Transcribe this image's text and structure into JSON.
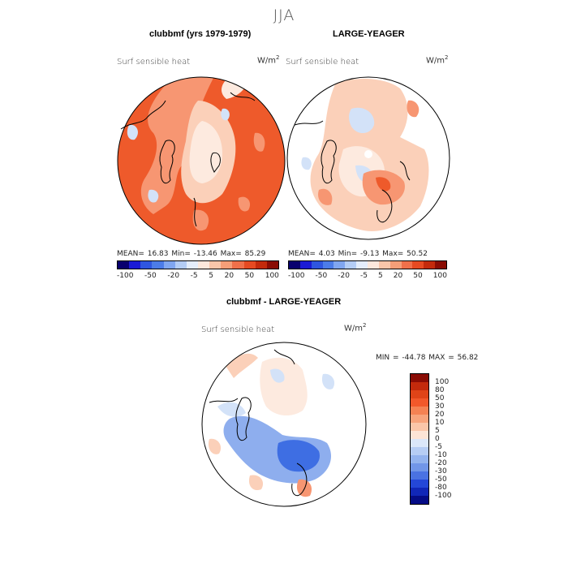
{
  "figure": {
    "title": "JJA"
  },
  "panels": [
    {
      "title": "clubbmf (yrs 1979-1979)",
      "field_label": "Surf sensible heat",
      "units_base": "W/m",
      "units_exp": "2",
      "stats_text": "MEAN=   16.83   Min=  -13.46   Max=   85.29"
    },
    {
      "title": "LARGE-YEAGER",
      "field_label": "Surf sensible heat",
      "units_base": "W/m",
      "units_exp": "2",
      "stats_text": "MEAN=    4.03   Min=   -9.13   Max=   50.52"
    },
    {
      "title": "clubbmf - LARGE-YEAGER",
      "field_label": "Surf sensible heat",
      "units_base": "W/m",
      "units_exp": "2",
      "stats_text": "MIN = -44.78  MAX =   56.82"
    }
  ],
  "legend_top": {
    "colors": [
      "#08006e",
      "#1b1bd6",
      "#2f56e0",
      "#4c7ce8",
      "#80a6f0",
      "#b4cdf5",
      "#e4edfb",
      "#fde8dc",
      "#f9c6aa",
      "#f59e78",
      "#f0704a",
      "#e64a22",
      "#c32a0c",
      "#8a0c04"
    ],
    "ticks": [
      "-100",
      "-50",
      "-20",
      "-5",
      "5",
      "20",
      "50",
      "100"
    ]
  },
  "legend_diff": {
    "colors": [
      "#8a0c04",
      "#c32a0c",
      "#e04418",
      "#f2582a",
      "#f58253",
      "#f8a47c",
      "#fbc6a9",
      "#fde5d6",
      "#dbe7f9",
      "#b6cdf4",
      "#93b3ee",
      "#7196e8",
      "#4a72e2",
      "#2447d8",
      "#1127b8",
      "#050c86"
    ],
    "ticks": [
      "100",
      "80",
      "50",
      "30",
      "20",
      "10",
      "5",
      "0",
      "-5",
      "-10",
      "-20",
      "-30",
      "-50",
      "-80",
      "-100"
    ]
  },
  "map_colors": {
    "ocean_edge": "#ffffff",
    "warm_strong": "#ee5a2b",
    "warm_mid": "#f79672",
    "warm_light": "#fbd0b9",
    "pale": "#fdeadf",
    "cool_light": "#d3e2f8",
    "cool_mid": "#8eaeee",
    "cool_strong": "#3e6ee3"
  }
}
